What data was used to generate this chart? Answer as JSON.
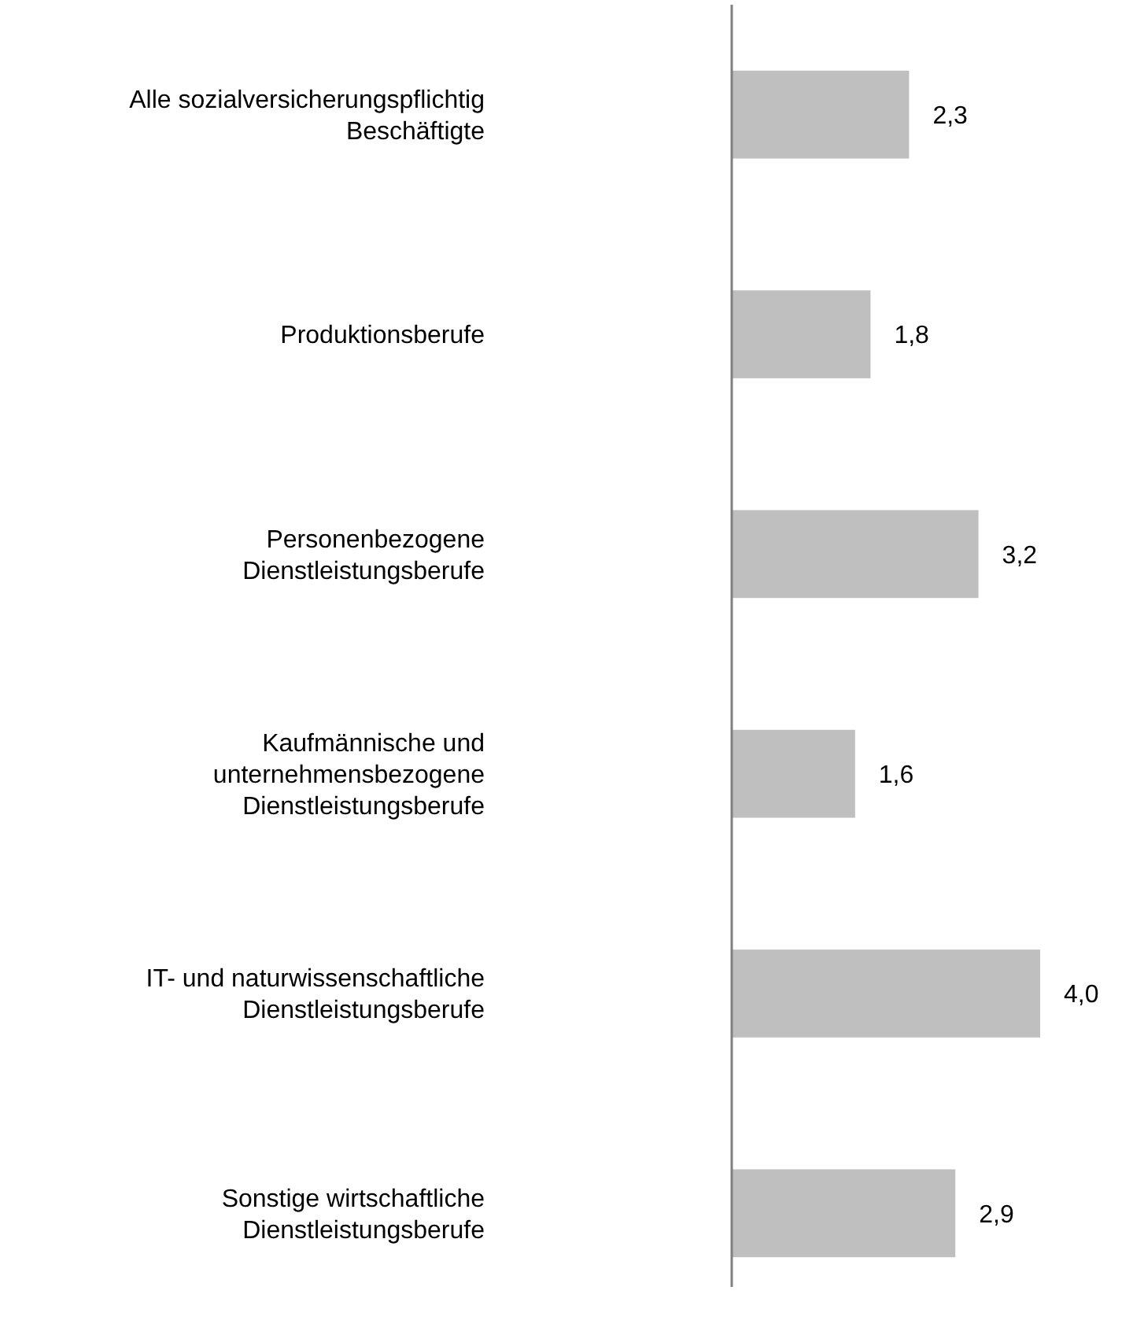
{
  "chart_data": {
    "type": "bar",
    "orientation": "horizontal",
    "categories": [
      "Alle sozialversicherungspflichtig\nBeschäftigte",
      "Produktionsberufe",
      "Personenbezogene\nDienstleistungsberufe",
      "Kaufmännische und\nunternehmensbezogene\nDienstleistungsberufe",
      "IT- und naturwissenschaftliche\nDienstleistungsberufe",
      "Sonstige wirtschaftliche\nDienstleistungsberufe"
    ],
    "values": [
      2.3,
      1.8,
      3.2,
      1.6,
      4.0,
      2.9
    ],
    "value_labels": [
      "2,3",
      "1,8",
      "3,2",
      "1,6",
      "4,0",
      "2,9"
    ],
    "color": "#bfbfbf",
    "tick_labels": "y"
  }
}
